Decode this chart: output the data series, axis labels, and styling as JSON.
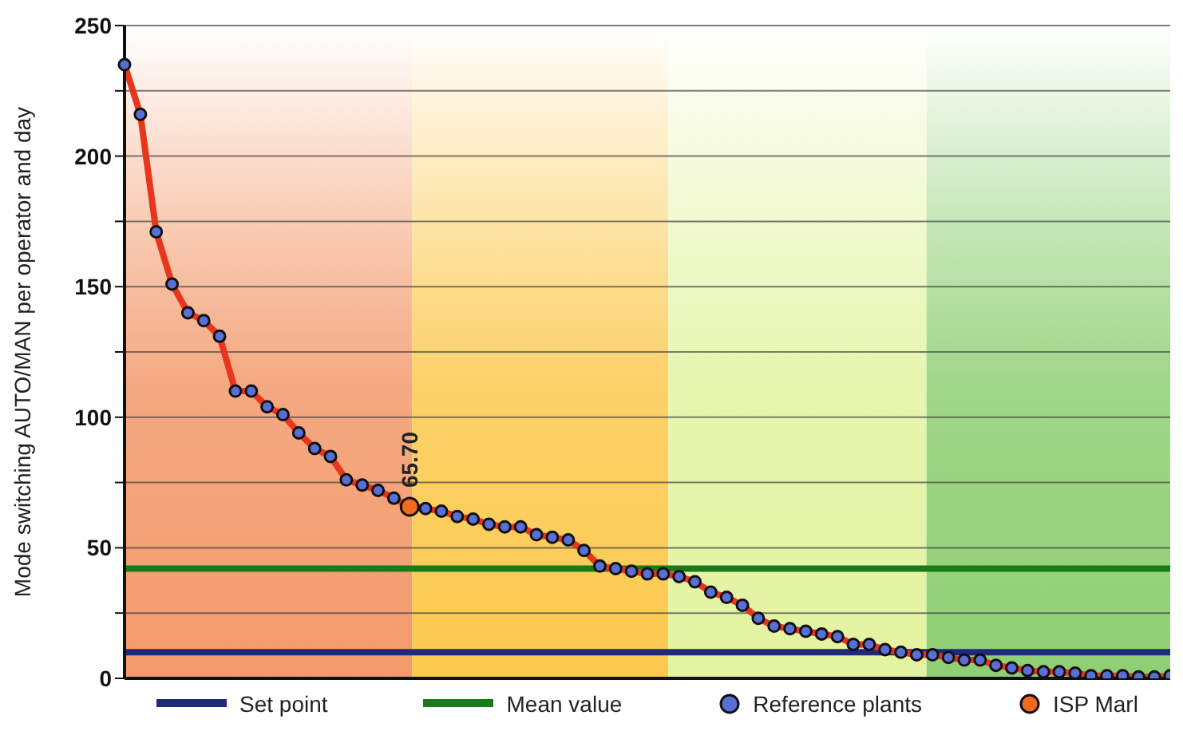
{
  "chart_data": {
    "type": "line",
    "ylabel": "Mode switching AUTO/MAN per operator and day",
    "categories": [
      null,
      null,
      null,
      null,
      null,
      null,
      null,
      null,
      null,
      null,
      null,
      null,
      null,
      null,
      null,
      null,
      null,
      null,
      null,
      null,
      null,
      null,
      null,
      null,
      null,
      null,
      null,
      null,
      null,
      null,
      null,
      null,
      null,
      null,
      null,
      null,
      null,
      null,
      null,
      null,
      null,
      null,
      null,
      null,
      null,
      null,
      null,
      null,
      null,
      null,
      null,
      null,
      null,
      null,
      null,
      null,
      null,
      null,
      null,
      null,
      null,
      null,
      null,
      null,
      null,
      null,
      null
    ],
    "ylim": [
      0,
      250
    ],
    "yticks": [
      0,
      {
        "value": 25,
        "label": null
      },
      50,
      {
        "value": 75,
        "label": null
      },
      100,
      {
        "value": 125,
        "label": null
      },
      150,
      {
        "value": 175,
        "label": null
      },
      200,
      {
        "value": 225,
        "label": null
      },
      250
    ],
    "tick_labels": "y",
    "grid": "y",
    "legend": "bottom",
    "ref_lines": [
      {
        "axis": "y",
        "value": 10,
        "label": "Set point",
        "color": "#1f2a7a"
      },
      {
        "axis": "y",
        "value": 42,
        "label": "Mean value",
        "color": "#1a7a1a"
      }
    ],
    "annotations": [
      {
        "text": "65.70",
        "y": 65.7
      }
    ],
    "series": [
      {
        "color": "#e8361c",
        "values": [
          235,
          216,
          171,
          151,
          140,
          137,
          131,
          110,
          110,
          104,
          101,
          94,
          88,
          85,
          76,
          74,
          72,
          69,
          65.7,
          65,
          64,
          62,
          61,
          59,
          58,
          58,
          55,
          54,
          53,
          49,
          43,
          42,
          41,
          40,
          40,
          39,
          37,
          33,
          31,
          28,
          23,
          20,
          19,
          18,
          17,
          16,
          13,
          13,
          11,
          10,
          9,
          9,
          8,
          7,
          7,
          5,
          4,
          3,
          2.5,
          2.5,
          2,
          1,
          1,
          1,
          0.5,
          0.5,
          1
        ]
      },
      {
        "type": "scatter",
        "name": "Reference plants",
        "color": "#5a6fd6",
        "marker": "circle",
        "values": [
          235,
          216,
          171,
          151,
          140,
          137,
          131,
          110,
          110,
          104,
          101,
          94,
          88,
          85,
          76,
          74,
          72,
          69,
          null,
          65,
          64,
          62,
          61,
          59,
          58,
          58,
          55,
          54,
          53,
          49,
          43,
          42,
          41,
          40,
          40,
          39,
          37,
          33,
          31,
          28,
          23,
          20,
          19,
          18,
          17,
          16,
          13,
          13,
          11,
          10,
          9,
          9,
          8,
          7,
          7,
          5,
          4,
          3,
          2.5,
          2.5,
          2,
          1,
          1,
          1,
          0.5,
          0.5,
          1
        ]
      },
      {
        "type": "scatter",
        "name": "ISP Marl",
        "color": "#f26a1b",
        "marker": "circle",
        "values": [
          null,
          null,
          null,
          null,
          null,
          null,
          null,
          null,
          null,
          null,
          null,
          null,
          null,
          null,
          null,
          null,
          null,
          null,
          65.7,
          null,
          null,
          null,
          null,
          null,
          null,
          null,
          null,
          null,
          null,
          null,
          null,
          null,
          null,
          null,
          null,
          null,
          null,
          null,
          null,
          null,
          null,
          null,
          null,
          null,
          null,
          null,
          null,
          null,
          null,
          null,
          null,
          null,
          null,
          null,
          null,
          null,
          null,
          null,
          null,
          null,
          null,
          null,
          null,
          null,
          null,
          null,
          null
        ]
      }
    ]
  }
}
